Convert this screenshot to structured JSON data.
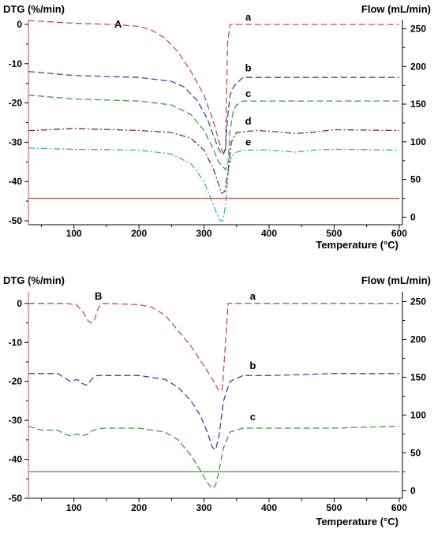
{
  "chart_data": [
    {
      "type": "line",
      "panel_label": "A",
      "ylabel_left": "DTG (%/min)",
      "ylabel_right": "Flow (mL/min)",
      "xlabel": "Temperature (°C)",
      "xlim": [
        30,
        605
      ],
      "ylim_left": [
        -51,
        1.2
      ],
      "ylim_right": [
        -10,
        262
      ],
      "x_ticks": [
        "100",
        "200",
        "300",
        "400",
        "500",
        "600"
      ],
      "y_ticks_left": [
        "0",
        "-10",
        "-20",
        "-30",
        "-40",
        "-50"
      ],
      "y_ticks_right": [
        "250",
        "200",
        "150",
        "100",
        "50",
        "0"
      ],
      "series": [
        {
          "name": "a",
          "color": "#c0504d",
          "dash": "8,4",
          "axis": "left",
          "x": [
            30,
            100,
            160,
            200,
            220,
            240,
            260,
            280,
            300,
            315,
            325,
            330,
            333,
            336,
            340,
            400,
            500,
            600
          ],
          "y": [
            1,
            0.3,
            0,
            -0.5,
            -1.5,
            -3.5,
            -7,
            -12,
            -18,
            -25,
            -31,
            -33,
            -32,
            -5,
            0,
            0,
            0,
            0
          ]
        },
        {
          "name": "b",
          "color": "#3a47a6",
          "dash": "8,4",
          "axis": "left",
          "x": [
            30,
            100,
            200,
            250,
            270,
            290,
            305,
            315,
            322,
            327,
            330,
            333,
            336,
            340,
            345,
            350,
            360,
            400,
            500,
            600
          ],
          "y": [
            -12,
            -13,
            -13.5,
            -14.5,
            -16,
            -19.5,
            -24,
            -28.5,
            -31.5,
            -33,
            -33,
            -31.5,
            -24,
            -18,
            -16,
            -15,
            -13.5,
            -13.5,
            -13.5,
            -13.5
          ]
        },
        {
          "name": "c",
          "color": "#3f9a3f",
          "dash": "8,4",
          "axis": "left",
          "x": [
            30,
            100,
            200,
            250,
            280,
            300,
            315,
            322,
            328,
            333,
            337,
            340,
            345,
            350,
            360,
            400,
            500,
            600
          ],
          "y": [
            -18,
            -19,
            -19.5,
            -20.5,
            -23,
            -27,
            -32,
            -35,
            -36,
            -37,
            -35,
            -27,
            -22,
            -20.5,
            -19.5,
            -19.5,
            -19.5,
            -19.5
          ]
        },
        {
          "name": "d",
          "color": "#7b2d3c",
          "dash": "8,3,2,3",
          "axis": "left",
          "x": [
            30,
            40,
            60,
            100,
            200,
            250,
            280,
            300,
            315,
            322,
            327,
            332,
            337,
            342,
            350,
            380,
            410,
            440,
            470,
            500,
            600
          ],
          "y": [
            -27,
            -27,
            -26.8,
            -26.5,
            -27,
            -27.5,
            -29,
            -32,
            -37,
            -40.5,
            -43,
            -42.5,
            -37,
            -30,
            -27.5,
            -27,
            -27.3,
            -27.8,
            -27.4,
            -26.8,
            -27
          ]
        },
        {
          "name": "e",
          "color": "#3fa8c8",
          "dash": "8,3,2,3",
          "axis": "left",
          "x": [
            30,
            100,
            200,
            250,
            280,
            300,
            312,
            320,
            325,
            329,
            333,
            337,
            342,
            350,
            360,
            400,
            440,
            470,
            500,
            600
          ],
          "y": [
            -31.5,
            -31.8,
            -32,
            -33,
            -35.5,
            -40,
            -45,
            -48.5,
            -50,
            -50,
            -46,
            -38,
            -33.5,
            -32.5,
            -32,
            -32,
            -32.5,
            -32,
            -31.8,
            -32
          ]
        },
        {
          "name": "",
          "color": "#c0504d",
          "dash": "",
          "axis": "right",
          "x": [
            30,
            600
          ],
          "y": [
            25,
            25
          ]
        }
      ],
      "annotations": [
        {
          "text": "a",
          "x": 368,
          "y": 1
        },
        {
          "text": "b",
          "x": 368,
          "y": -12
        },
        {
          "text": "c",
          "x": 368,
          "y": -18.5
        },
        {
          "text": "d",
          "x": 368,
          "y": -25.5
        },
        {
          "text": "e",
          "x": 368,
          "y": -30.8
        }
      ]
    },
    {
      "type": "line",
      "panel_label": "B",
      "ylabel_left": "DTG (%/min)",
      "ylabel_right": "Flow (mL/min)",
      "xlabel": "Temperature (°C)",
      "xlim": [
        30,
        605
      ],
      "ylim_left": [
        -50,
        3
      ],
      "ylim_right": [
        -10,
        263
      ],
      "x_ticks": [
        "100",
        "200",
        "300",
        "400",
        "500",
        "600"
      ],
      "y_ticks_left": [
        "0",
        "-10",
        "-20",
        "-30",
        "-40",
        "-50"
      ],
      "y_ticks_right": [
        "250",
        "200",
        "150",
        "100",
        "50",
        "0"
      ],
      "series": [
        {
          "name": "a",
          "color": "#c0504d",
          "dash": "8,4",
          "axis": "left",
          "x": [
            30,
            90,
            105,
            115,
            122,
            127,
            132,
            138,
            145,
            200,
            220,
            240,
            260,
            280,
            300,
            315,
            323,
            328,
            333,
            337,
            400,
            500,
            600
          ],
          "y": [
            0,
            0,
            -0.5,
            -2.5,
            -4.5,
            -5,
            -4,
            -1,
            0,
            -0.3,
            -1,
            -3,
            -7,
            -11,
            -16,
            -20,
            -22.5,
            -22,
            -10,
            0,
            0,
            0,
            0
          ]
        },
        {
          "name": "b",
          "color": "#3a47a6",
          "dash": "8,4",
          "axis": "left",
          "x": [
            30,
            75,
            85,
            95,
            105,
            112,
            120,
            127,
            135,
            150,
            200,
            240,
            260,
            280,
            295,
            305,
            313,
            318,
            323,
            330,
            340,
            360,
            400,
            500,
            600
          ],
          "y": [
            -18,
            -18,
            -19,
            -20,
            -19.5,
            -20.5,
            -21,
            -19.5,
            -18.5,
            -18.5,
            -18.5,
            -19.5,
            -21.5,
            -25,
            -29,
            -33,
            -37,
            -37.5,
            -34,
            -25,
            -20,
            -18.5,
            -18.5,
            -18,
            -18
          ]
        },
        {
          "name": "c",
          "color": "#3f9a3f",
          "dash": "8,4",
          "axis": "left",
          "x": [
            30,
            50,
            75,
            85,
            95,
            105,
            112,
            122,
            130,
            145,
            200,
            240,
            260,
            280,
            295,
            305,
            313,
            318,
            323,
            330,
            340,
            360,
            400,
            500,
            600
          ],
          "y": [
            -31.5,
            -32.5,
            -32.5,
            -33.5,
            -34,
            -33.5,
            -34,
            -33.5,
            -32.5,
            -32,
            -32,
            -33,
            -35,
            -39,
            -43,
            -46,
            -47.5,
            -46.5,
            -43,
            -37,
            -33,
            -32,
            -32,
            -32,
            -31.5
          ]
        },
        {
          "name": "",
          "color": "#3f9a3f",
          "dash": "",
          "axis": "right",
          "x": [
            30,
            600
          ],
          "y": [
            25,
            25
          ]
        }
      ],
      "annotations": [
        {
          "text": "a",
          "x": 375,
          "y": 1
        },
        {
          "text": "b",
          "x": 375,
          "y": -16.8
        },
        {
          "text": "c",
          "x": 375,
          "y": -30
        }
      ]
    }
  ]
}
